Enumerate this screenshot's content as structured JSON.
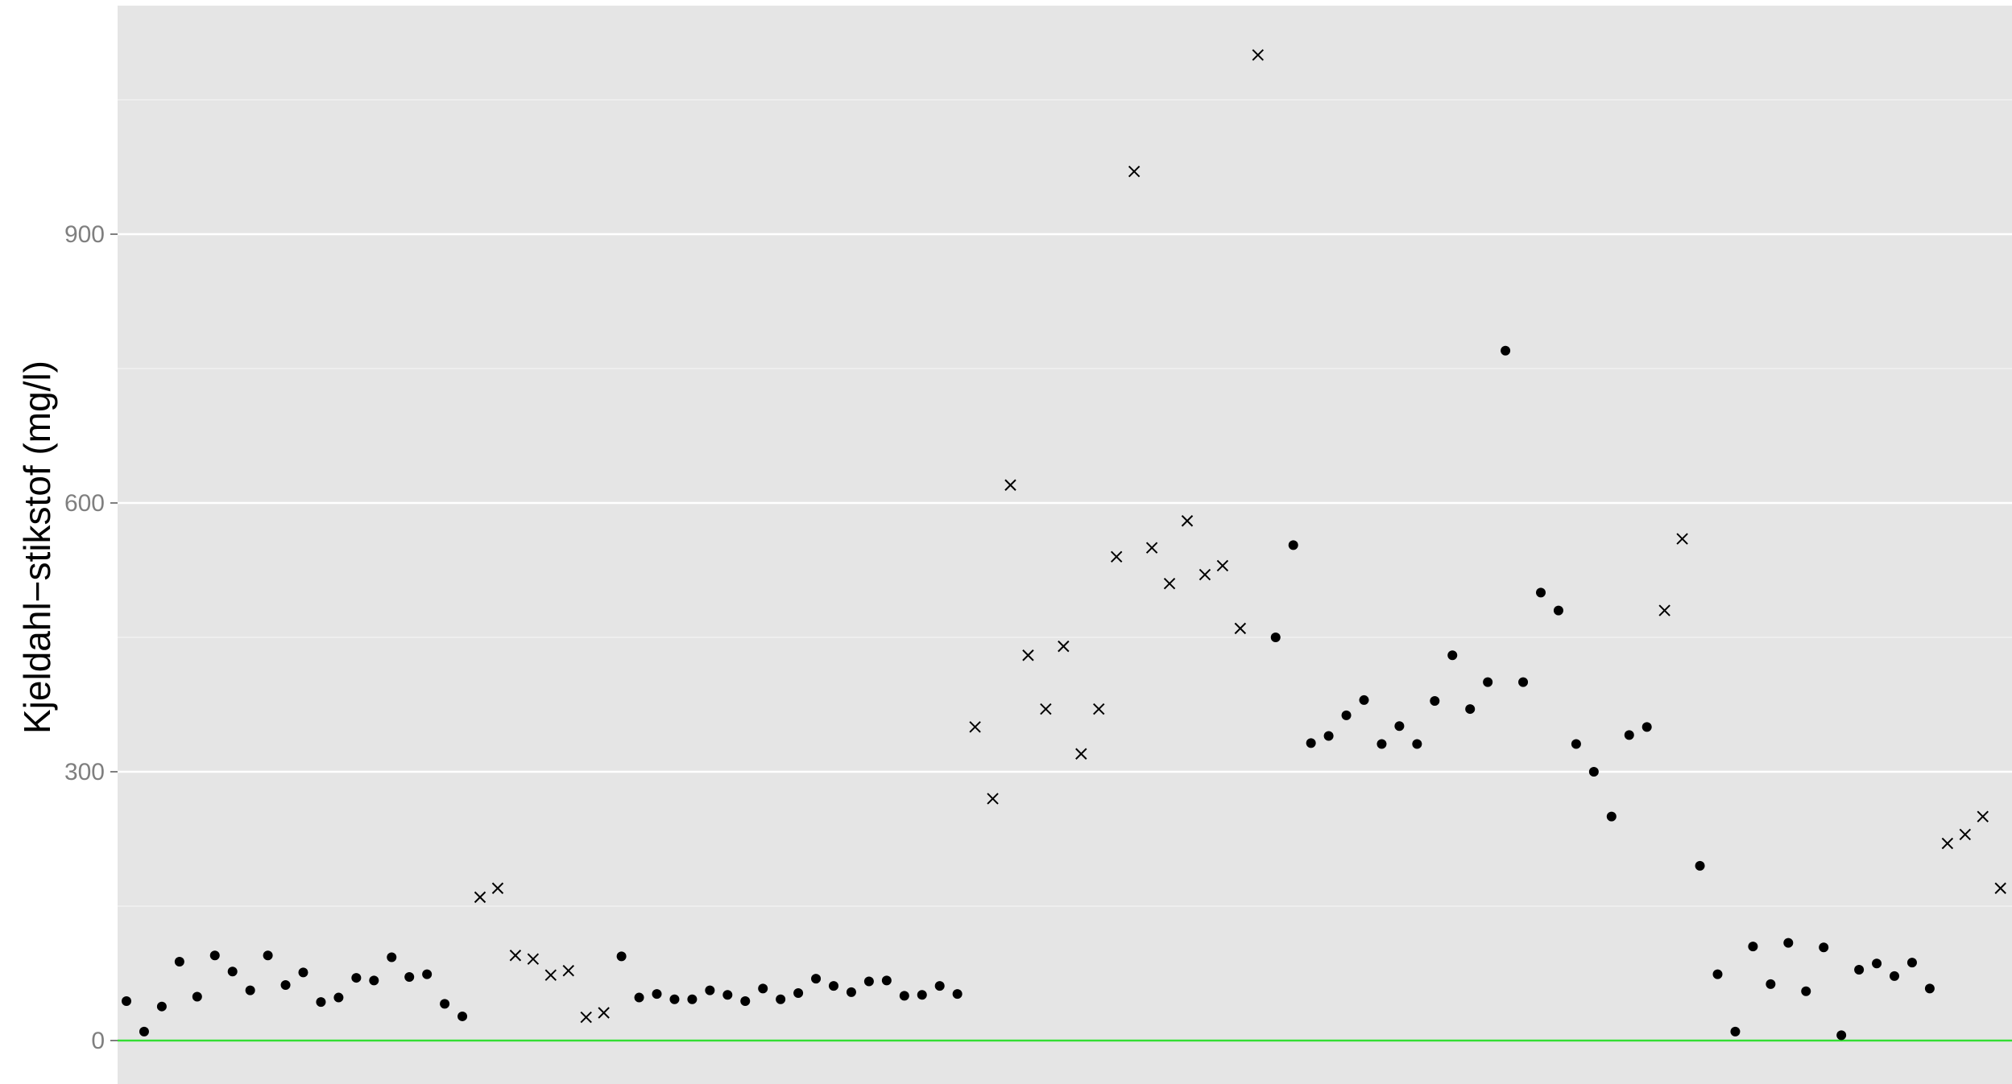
{
  "chart_data": {
    "type": "scatter",
    "title": "",
    "xlabel": "",
    "ylabel": "Kjeldahl−stikstof (mg/l)",
    "ylim": [
      -50,
      1155
    ],
    "yticks": [
      0,
      300,
      600,
      900
    ],
    "ytick_labels": [
      "0",
      "300",
      "600",
      "900"
    ],
    "grid": true,
    "reference_line": {
      "y": 0,
      "color": "#33dd33"
    },
    "colors": {
      "panel": "#e5e5e5",
      "grid": "#ffffff",
      "marker": "#000000",
      "tick_text": "#7f7f7f"
    },
    "marker_types": [
      "dot",
      "cross"
    ],
    "points": [
      {
        "x": 1,
        "y": 44,
        "m": "dot"
      },
      {
        "x": 2,
        "y": 10,
        "m": "dot"
      },
      {
        "x": 3,
        "y": 38,
        "m": "dot"
      },
      {
        "x": 4,
        "y": 88,
        "m": "dot"
      },
      {
        "x": 5,
        "y": 49,
        "m": "dot"
      },
      {
        "x": 6,
        "y": 95,
        "m": "dot"
      },
      {
        "x": 7,
        "y": 77,
        "m": "dot"
      },
      {
        "x": 8,
        "y": 56,
        "m": "dot"
      },
      {
        "x": 9,
        "y": 95,
        "m": "dot"
      },
      {
        "x": 10,
        "y": 62,
        "m": "dot"
      },
      {
        "x": 11,
        "y": 76,
        "m": "dot"
      },
      {
        "x": 12,
        "y": 43,
        "m": "dot"
      },
      {
        "x": 13,
        "y": 48,
        "m": "dot"
      },
      {
        "x": 14,
        "y": 70,
        "m": "dot"
      },
      {
        "x": 15,
        "y": 67,
        "m": "dot"
      },
      {
        "x": 16,
        "y": 93,
        "m": "dot"
      },
      {
        "x": 17,
        "y": 71,
        "m": "dot"
      },
      {
        "x": 18,
        "y": 74,
        "m": "dot"
      },
      {
        "x": 19,
        "y": 41,
        "m": "dot"
      },
      {
        "x": 20,
        "y": 27,
        "m": "dot"
      },
      {
        "x": 21,
        "y": 160,
        "m": "cross"
      },
      {
        "x": 22,
        "y": 170,
        "m": "cross"
      },
      {
        "x": 23,
        "y": 95,
        "m": "cross"
      },
      {
        "x": 24,
        "y": 91,
        "m": "cross"
      },
      {
        "x": 25,
        "y": 73,
        "m": "cross"
      },
      {
        "x": 26,
        "y": 78,
        "m": "cross"
      },
      {
        "x": 27,
        "y": 26,
        "m": "cross"
      },
      {
        "x": 28,
        "y": 31,
        "m": "cross"
      },
      {
        "x": 29,
        "y": 94,
        "m": "dot"
      },
      {
        "x": 30,
        "y": 48,
        "m": "dot"
      },
      {
        "x": 31,
        "y": 52,
        "m": "dot"
      },
      {
        "x": 32,
        "y": 46,
        "m": "dot"
      },
      {
        "x": 33,
        "y": 46,
        "m": "dot"
      },
      {
        "x": 34,
        "y": 56,
        "m": "dot"
      },
      {
        "x": 35,
        "y": 51,
        "m": "dot"
      },
      {
        "x": 36,
        "y": 44,
        "m": "dot"
      },
      {
        "x": 37,
        "y": 58,
        "m": "dot"
      },
      {
        "x": 38,
        "y": 46,
        "m": "dot"
      },
      {
        "x": 39,
        "y": 53,
        "m": "dot"
      },
      {
        "x": 40,
        "y": 69,
        "m": "dot"
      },
      {
        "x": 41,
        "y": 61,
        "m": "dot"
      },
      {
        "x": 42,
        "y": 54,
        "m": "dot"
      },
      {
        "x": 43,
        "y": 66,
        "m": "dot"
      },
      {
        "x": 44,
        "y": 67,
        "m": "dot"
      },
      {
        "x": 45,
        "y": 50,
        "m": "dot"
      },
      {
        "x": 46,
        "y": 51,
        "m": "dot"
      },
      {
        "x": 47,
        "y": 61,
        "m": "dot"
      },
      {
        "x": 48,
        "y": 52,
        "m": "dot"
      },
      {
        "x": 49,
        "y": 350,
        "m": "cross"
      },
      {
        "x": 50,
        "y": 270,
        "m": "cross"
      },
      {
        "x": 51,
        "y": 620,
        "m": "cross"
      },
      {
        "x": 52,
        "y": 430,
        "m": "cross"
      },
      {
        "x": 53,
        "y": 370,
        "m": "cross"
      },
      {
        "x": 54,
        "y": 440,
        "m": "cross"
      },
      {
        "x": 55,
        "y": 320,
        "m": "cross"
      },
      {
        "x": 56,
        "y": 370,
        "m": "cross"
      },
      {
        "x": 57,
        "y": 540,
        "m": "cross"
      },
      {
        "x": 58,
        "y": 970,
        "m": "cross"
      },
      {
        "x": 59,
        "y": 550,
        "m": "cross"
      },
      {
        "x": 60,
        "y": 510,
        "m": "cross"
      },
      {
        "x": 61,
        "y": 580,
        "m": "cross"
      },
      {
        "x": 62,
        "y": 520,
        "m": "cross"
      },
      {
        "x": 63,
        "y": 530,
        "m": "cross"
      },
      {
        "x": 64,
        "y": 460,
        "m": "cross"
      },
      {
        "x": 65,
        "y": 1100,
        "m": "cross"
      },
      {
        "x": 66,
        "y": 450,
        "m": "dot"
      },
      {
        "x": 67,
        "y": 553,
        "m": "dot"
      },
      {
        "x": 68,
        "y": 332,
        "m": "dot"
      },
      {
        "x": 69,
        "y": 340,
        "m": "dot"
      },
      {
        "x": 70,
        "y": 363,
        "m": "dot"
      },
      {
        "x": 71,
        "y": 380,
        "m": "dot"
      },
      {
        "x": 72,
        "y": 331,
        "m": "dot"
      },
      {
        "x": 73,
        "y": 351,
        "m": "dot"
      },
      {
        "x": 74,
        "y": 331,
        "m": "dot"
      },
      {
        "x": 75,
        "y": 379,
        "m": "dot"
      },
      {
        "x": 76,
        "y": 430,
        "m": "dot"
      },
      {
        "x": 77,
        "y": 370,
        "m": "dot"
      },
      {
        "x": 78,
        "y": 400,
        "m": "dot"
      },
      {
        "x": 79,
        "y": 770,
        "m": "dot"
      },
      {
        "x": 80,
        "y": 400,
        "m": "dot"
      },
      {
        "x": 81,
        "y": 500,
        "m": "dot"
      },
      {
        "x": 82,
        "y": 480,
        "m": "dot"
      },
      {
        "x": 83,
        "y": 331,
        "m": "dot"
      },
      {
        "x": 84,
        "y": 300,
        "m": "dot"
      },
      {
        "x": 85,
        "y": 250,
        "m": "dot"
      },
      {
        "x": 86,
        "y": 341,
        "m": "dot"
      },
      {
        "x": 87,
        "y": 350,
        "m": "dot"
      },
      {
        "x": 88,
        "y": 480,
        "m": "cross"
      },
      {
        "x": 89,
        "y": 560,
        "m": "cross"
      },
      {
        "x": 90,
        "y": 195,
        "m": "dot"
      },
      {
        "x": 91,
        "y": 74,
        "m": "dot"
      },
      {
        "x": 92,
        "y": 10,
        "m": "dot"
      },
      {
        "x": 93,
        "y": 105,
        "m": "dot"
      },
      {
        "x": 94,
        "y": 63,
        "m": "dot"
      },
      {
        "x": 95,
        "y": 109,
        "m": "dot"
      },
      {
        "x": 96,
        "y": 55,
        "m": "dot"
      },
      {
        "x": 97,
        "y": 104,
        "m": "dot"
      },
      {
        "x": 98,
        "y": 6,
        "m": "dot"
      },
      {
        "x": 99,
        "y": 79,
        "m": "dot"
      },
      {
        "x": 100,
        "y": 86,
        "m": "dot"
      },
      {
        "x": 101,
        "y": 72,
        "m": "dot"
      },
      {
        "x": 102,
        "y": 87,
        "m": "dot"
      },
      {
        "x": 103,
        "y": 58,
        "m": "dot"
      },
      {
        "x": 104,
        "y": 220,
        "m": "cross"
      },
      {
        "x": 105,
        "y": 230,
        "m": "cross"
      },
      {
        "x": 106,
        "y": 250,
        "m": "cross"
      },
      {
        "x": 107,
        "y": 170,
        "m": "cross"
      }
    ]
  }
}
